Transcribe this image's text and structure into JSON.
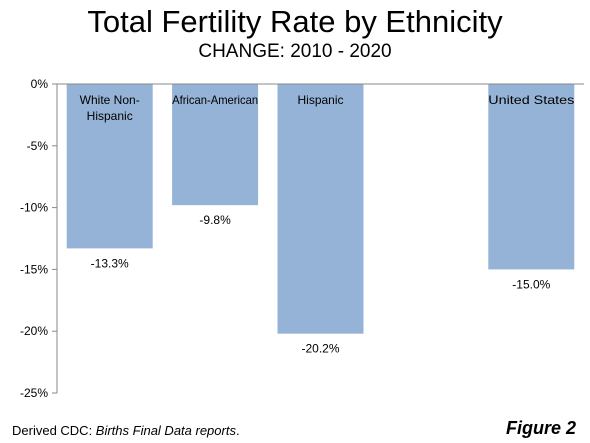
{
  "chart_data": {
    "type": "bar",
    "title": "Total Fertility Rate by Ethnicity",
    "subtitle": "CHANGE: 2010 - 2020",
    "categories": [
      "White Non-Hispanic",
      "African-American",
      "Hispanic",
      "",
      "United States"
    ],
    "category_labels": [
      [
        "White Non-",
        "Hispanic"
      ],
      [
        "African-American"
      ],
      [
        "Hispanic"
      ],
      [
        ""
      ],
      [
        "United States"
      ]
    ],
    "values": [
      -13.3,
      -9.8,
      -20.2,
      null,
      -15.0
    ],
    "data_labels": [
      "-13.3%",
      "-9.8%",
      "-20.2%",
      "",
      "-15.0%"
    ],
    "ylim": [
      -25,
      0
    ],
    "yticks": [
      0,
      -5,
      -10,
      -15,
      -20,
      -25
    ],
    "ytick_labels": [
      "0%",
      "-5%",
      "-10%",
      "-15%",
      "-20%",
      "-25%"
    ],
    "grid": false,
    "bar_color": "#95b3d7"
  },
  "footer": {
    "source_prefix": "Derived  CDC: ",
    "source_italic": "Births Final Data reports",
    "source_suffix": ".",
    "figure_label": "Figure 2"
  }
}
